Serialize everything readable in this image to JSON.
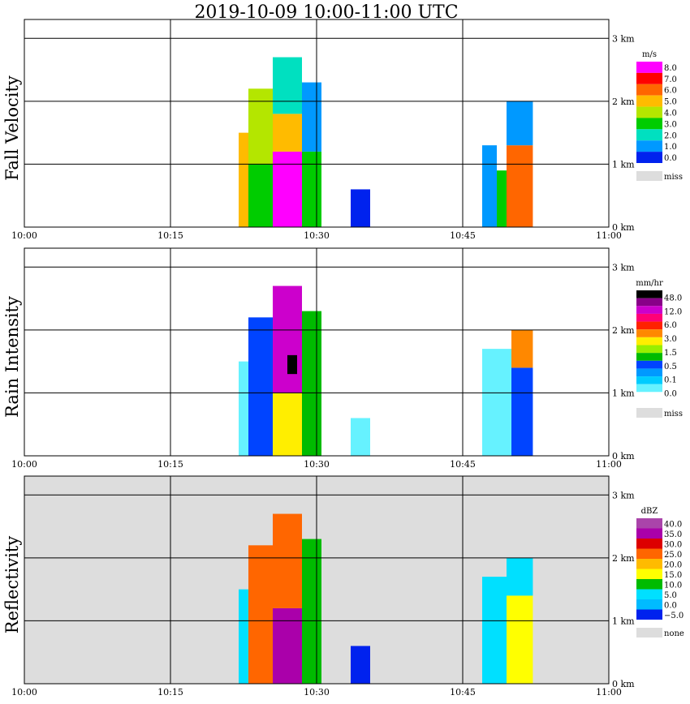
{
  "title": "2019-10-09   10:00-11:00 UTC",
  "time_ticks": [
    "10:00",
    "10:15",
    "10:30",
    "10:45",
    "11:00"
  ],
  "height_ticks": [
    "0 km",
    "1 km",
    "2 km",
    "3 km"
  ],
  "colors": {
    "frame": "#000000",
    "grid": "#000000",
    "missing_bg": "#dddddd",
    "missing_swatch": "#dddddd"
  },
  "chart_data": [
    {
      "type": "heatmap",
      "name": "fall-velocity",
      "ylabel": "Fall Velocity",
      "xlabel": "",
      "x_range": [
        "10:00",
        "11:00"
      ],
      "y_range_km": [
        0,
        3.3
      ],
      "grid": true,
      "legend_position": "right",
      "legend": {
        "unit": "m/s",
        "labels": [
          "8.0",
          "7.0",
          "6.0",
          "5.0",
          "4.0",
          "3.0",
          "2.0",
          "1.0",
          "0.0"
        ],
        "colors": [
          "#ff00ff",
          "#ff0000",
          "#ff6600",
          "#ffbb00",
          "#b4e600",
          "#00cc00",
          "#00e0c0",
          "#0099ff",
          "#0022ee"
        ],
        "missing_label": "miss"
      },
      "background": "#ffffff",
      "cells": [
        {
          "t0": 22,
          "t1": 23,
          "z0": 0.0,
          "z1": 1.5,
          "color": "#ffbb00"
        },
        {
          "t0": 23,
          "t1": 25.5,
          "z0": 0.0,
          "z1": 1.0,
          "color": "#00cc00"
        },
        {
          "t0": 23,
          "t1": 25.5,
          "z0": 1.0,
          "z1": 2.2,
          "color": "#b4e600"
        },
        {
          "t0": 25.5,
          "t1": 28.5,
          "z0": 0.0,
          "z1": 1.2,
          "color": "#ff00ff"
        },
        {
          "t0": 25.5,
          "t1": 28.5,
          "z0": 1.2,
          "z1": 1.8,
          "color": "#ffbb00"
        },
        {
          "t0": 25.5,
          "t1": 28.5,
          "z0": 1.8,
          "z1": 2.7,
          "color": "#00e0c0"
        },
        {
          "t0": 28.5,
          "t1": 30.5,
          "z0": 0.0,
          "z1": 1.2,
          "color": "#00cc00"
        },
        {
          "t0": 28.5,
          "t1": 30.5,
          "z0": 1.2,
          "z1": 2.3,
          "color": "#0099ff"
        },
        {
          "t0": 33.5,
          "t1": 35.5,
          "z0": 0.0,
          "z1": 0.6,
          "color": "#0022ee"
        },
        {
          "t0": 47,
          "t1": 48.5,
          "z0": 0.0,
          "z1": 1.3,
          "color": "#0099ff"
        },
        {
          "t0": 48.5,
          "t1": 49.5,
          "z0": 0.0,
          "z1": 0.9,
          "color": "#00cc00"
        },
        {
          "t0": 49.5,
          "t1": 52.2,
          "z0": 0.0,
          "z1": 1.3,
          "color": "#ff6600"
        },
        {
          "t0": 49.5,
          "t1": 52.2,
          "z0": 1.3,
          "z1": 2.0,
          "color": "#0099ff"
        }
      ]
    },
    {
      "type": "heatmap",
      "name": "rain-intensity",
      "ylabel": "Rain Intensity",
      "xlabel": "",
      "x_range": [
        "10:00",
        "11:00"
      ],
      "y_range_km": [
        0,
        3.3
      ],
      "grid": true,
      "legend_position": "right",
      "legend": {
        "unit": "mm/hr",
        "labels": [
          "48.0",
          "12.0",
          "6.0",
          "3.0",
          "1.5",
          "0.5",
          "0.1",
          "0.0"
        ],
        "colors": [
          "#000000",
          "#880088",
          "#cc00cc",
          "#ff0077",
          "#ff2200",
          "#ff8800",
          "#ffee00",
          "#99ee00",
          "#00bb00",
          "#0044ff",
          "#0099ff",
          "#00ccff",
          "#66f2ff",
          "#ffffff"
        ],
        "missing_label": "miss"
      },
      "background": "#ffffff",
      "cells": [
        {
          "t0": 22,
          "t1": 23,
          "z0": 0.0,
          "z1": 1.5,
          "color": "#66f2ff"
        },
        {
          "t0": 23,
          "t1": 25.5,
          "z0": 0.0,
          "z1": 2.2,
          "color": "#0044ff"
        },
        {
          "t0": 25.5,
          "t1": 28.5,
          "z0": 0.0,
          "z1": 1.0,
          "color": "#ffee00"
        },
        {
          "t0": 25.5,
          "t1": 28.5,
          "z0": 1.0,
          "z1": 2.7,
          "color": "#cc00cc"
        },
        {
          "t0": 27,
          "t1": 28,
          "z0": 1.3,
          "z1": 1.6,
          "color": "#000000"
        },
        {
          "t0": 28.5,
          "t1": 30.5,
          "z0": 0.0,
          "z1": 2.3,
          "color": "#00bb00"
        },
        {
          "t0": 33.5,
          "t1": 35.5,
          "z0": 0.0,
          "z1": 0.6,
          "color": "#66f2ff"
        },
        {
          "t0": 47,
          "t1": 50,
          "z0": 0.0,
          "z1": 1.7,
          "color": "#66f2ff"
        },
        {
          "t0": 50,
          "t1": 52.2,
          "z0": 0.0,
          "z1": 1.4,
          "color": "#0044ff"
        },
        {
          "t0": 50,
          "t1": 52.2,
          "z0": 1.4,
          "z1": 2.0,
          "color": "#ff8800"
        }
      ]
    },
    {
      "type": "heatmap",
      "name": "reflectivity",
      "ylabel": "Reflectivity",
      "xlabel": "",
      "x_range": [
        "10:00",
        "11:00"
      ],
      "y_range_km": [
        0,
        3.3
      ],
      "grid": true,
      "legend_position": "right",
      "legend": {
        "unit": "dBZ",
        "labels": [
          "40.0",
          "35.0",
          "30.0",
          "25.0",
          "20.0",
          "15.0",
          "10.0",
          "5.0",
          "0.0",
          "−5.0"
        ],
        "colors": [
          "#aa44aa",
          "#aa00aa",
          "#dd0000",
          "#ff6600",
          "#ffbb00",
          "#ffff00",
          "#00bb00",
          "#00e0ff",
          "#00bbff",
          "#0022ee"
        ],
        "missing_label": "none"
      },
      "background": "#dddddd",
      "cells": [
        {
          "t0": 22,
          "t1": 23,
          "z0": 0.0,
          "z1": 1.5,
          "color": "#00e0ff"
        },
        {
          "t0": 23,
          "t1": 25.5,
          "z0": 0.0,
          "z1": 2.2,
          "color": "#ff6600"
        },
        {
          "t0": 25.5,
          "t1": 28.5,
          "z0": 0.0,
          "z1": 1.2,
          "color": "#aa00aa"
        },
        {
          "t0": 25.5,
          "t1": 28.5,
          "z0": 1.2,
          "z1": 2.7,
          "color": "#ff6600"
        },
        {
          "t0": 28.5,
          "t1": 30.5,
          "z0": 0.0,
          "z1": 2.3,
          "color": "#00bb00"
        },
        {
          "t0": 33.5,
          "t1": 35.5,
          "z0": 0.0,
          "z1": 0.6,
          "color": "#0022ee"
        },
        {
          "t0": 47,
          "t1": 49.5,
          "z0": 0.0,
          "z1": 1.7,
          "color": "#00e0ff"
        },
        {
          "t0": 49.5,
          "t1": 52.2,
          "z0": 0.0,
          "z1": 1.4,
          "color": "#ffff00"
        },
        {
          "t0": 49.5,
          "t1": 52.2,
          "z0": 1.4,
          "z1": 2.0,
          "color": "#00e0ff"
        }
      ]
    }
  ]
}
